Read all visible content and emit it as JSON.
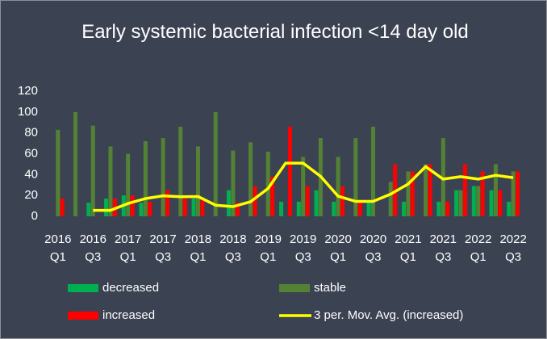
{
  "chart_data": {
    "type": "bar_line",
    "title": "Early systemic bacterial infection <14 day old",
    "categories": [
      "2016 Q1",
      null,
      "2016 Q3",
      null,
      "2017 Q1",
      null,
      "2017 Q3",
      null,
      "2018 Q1",
      null,
      "2018 Q3",
      null,
      "2019 Q1",
      null,
      "2019 Q3",
      null,
      "2020 Q1",
      null,
      "2020 Q3",
      null,
      "2021 Q1",
      null,
      "2021 Q3",
      null,
      "2022 Q1",
      null,
      "2022 Q3"
    ],
    "series": [
      {
        "name": "decreased",
        "type": "bar",
        "color": "#00b050",
        "values": [
          0,
          0,
          13,
          17,
          20,
          13,
          0,
          0,
          17,
          0,
          25,
          0,
          0,
          14,
          14,
          25,
          14,
          0,
          14,
          0,
          14,
          0,
          14,
          25,
          29,
          25,
          14
        ]
      },
      {
        "name": "stable",
        "type": "bar",
        "color": "#548235",
        "values": [
          83,
          100,
          87,
          67,
          60,
          72,
          75,
          86,
          67,
          100,
          63,
          71,
          62,
          0,
          57,
          75,
          57,
          75,
          86,
          33,
          43,
          50,
          75,
          25,
          29,
          50,
          43
        ]
      },
      {
        "name": "increased",
        "type": "bar",
        "color": "#ff0000",
        "values": [
          17,
          0,
          0,
          17,
          20,
          14,
          25,
          17,
          15,
          0,
          13,
          29,
          38,
          86,
          29,
          0,
          29,
          14,
          0,
          50,
          43,
          50,
          14,
          50,
          43,
          25,
          43
        ]
      },
      {
        "name": "3 per. Mov. Avg. (increased)",
        "type": "line",
        "color": "#ffff00",
        "values": [
          null,
          null,
          5.7,
          5.7,
          12.3,
          17,
          19.7,
          18.7,
          19,
          10.7,
          9.3,
          14,
          26.7,
          51,
          51,
          38.3,
          19.3,
          14.3,
          14.3,
          21.3,
          31,
          47.7,
          35.7,
          38,
          35.7,
          39.3,
          37
        ]
      }
    ],
    "ylim": [
      0,
      120
    ],
    "yticks": [
      0,
      20,
      40,
      60,
      80,
      100,
      120
    ],
    "grid": false
  }
}
